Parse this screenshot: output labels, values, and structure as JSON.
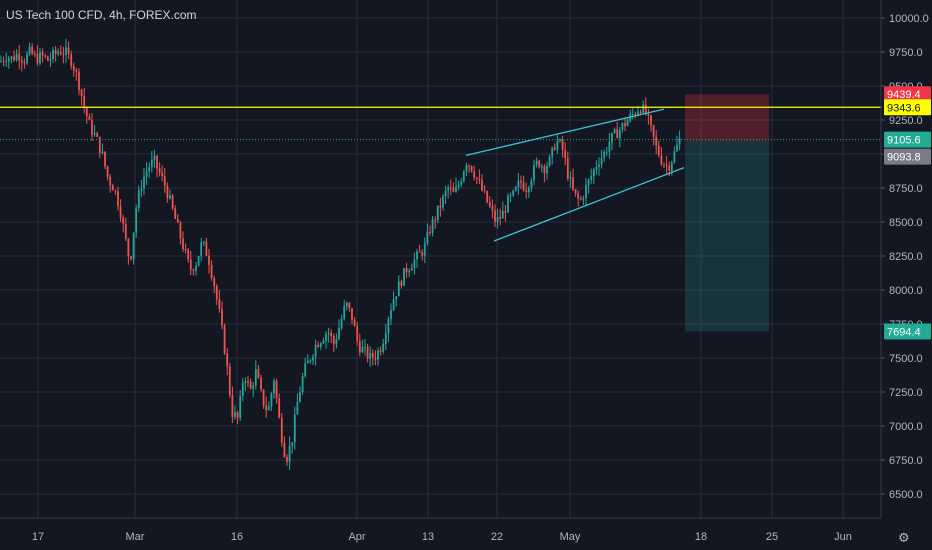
{
  "title": "US Tech 100 CFD, 4h, FOREX.com",
  "colors": {
    "background": "#131722",
    "grid": "#2a2e39",
    "up": "#26a69a",
    "down": "#ef5350",
    "axis_text": "#b2b5be",
    "resistance": "#ffff00",
    "channel": "#38c2cf",
    "stop_zone": "#f23645",
    "target_zone": "#22ab94"
  },
  "chart_data": {
    "type": "candlestick",
    "timeframe": "4h",
    "symbol": "US Tech 100 CFD",
    "source": "FOREX.com",
    "y_ticks": [
      10000,
      9750,
      9500,
      9250,
      9000,
      8750,
      8500,
      8250,
      8000,
      7750,
      7500,
      7250,
      7000,
      6750,
      6500
    ],
    "y_tick_labels": [
      "10000.0",
      "9750.0",
      "9500.0",
      "9250.0",
      "9000.0",
      "8750.0",
      "8500.0",
      "8250.0",
      "8000.0",
      "7750.0",
      "7500.0",
      "7250.0",
      "7000.0",
      "6750.0",
      "6500.0"
    ],
    "ylim": [
      6420,
      10080
    ],
    "x_ticks": [
      "17",
      "Mar",
      "16",
      "Apr",
      "13",
      "22",
      "May",
      "18",
      "25",
      "Jun"
    ],
    "price_labels": [
      {
        "text": "9439.4",
        "value": 9439.4,
        "color": "#f23645"
      },
      {
        "text": "9343.6",
        "value": 9343.6,
        "color": "#ffff00"
      },
      {
        "text": "9105.6",
        "value": 9105.6,
        "color": "#22ab94"
      },
      {
        "text": "9093.8",
        "value": 9093.8,
        "color": "#787b86"
      },
      {
        "text": "7694.4",
        "value": 7694.4,
        "color": "#22ab94"
      }
    ],
    "resistance_level": 9343.6,
    "last_price": 9105.6,
    "position": {
      "stop": 9439.4,
      "entry": 9093.8,
      "target": 7694.4
    },
    "channel_upper": {
      "from": {
        "date": "Apr 17",
        "value": 8990
      },
      "to": {
        "date": "May 12",
        "value": 9330
      }
    },
    "channel_lower": {
      "from": {
        "date": "Apr 21",
        "value": 8360
      },
      "to": {
        "date": "May 13",
        "value": 8900
      }
    },
    "path": [
      [
        0,
        9680
      ],
      [
        6,
        9720
      ],
      [
        12,
        9700
      ],
      [
        18,
        9740
      ],
      [
        24,
        9690
      ],
      [
        30,
        9750
      ],
      [
        36,
        9700
      ],
      [
        42,
        9720
      ],
      [
        48,
        9690
      ],
      [
        54,
        9730
      ],
      [
        60,
        9760
      ],
      [
        66,
        9740
      ],
      [
        72,
        9680
      ],
      [
        78,
        9550
      ],
      [
        84,
        9350
      ],
      [
        90,
        9200
      ],
      [
        96,
        9120
      ],
      [
        102,
        9000
      ],
      [
        108,
        8820
      ],
      [
        114,
        8750
      ],
      [
        120,
        8600
      ],
      [
        126,
        8350
      ],
      [
        130,
        8200
      ],
      [
        136,
        8600
      ],
      [
        142,
        8800
      ],
      [
        148,
        8900
      ],
      [
        154,
        8950
      ],
      [
        160,
        8850
      ],
      [
        166,
        8750
      ],
      [
        172,
        8600
      ],
      [
        178,
        8450
      ],
      [
        184,
        8300
      ],
      [
        190,
        8150
      ],
      [
        196,
        8200
      ],
      [
        202,
        8350
      ],
      [
        208,
        8250
      ],
      [
        214,
        8050
      ],
      [
        220,
        7800
      ],
      [
        226,
        7500
      ],
      [
        232,
        7100
      ],
      [
        238,
        7050
      ],
      [
        244,
        7400
      ],
      [
        250,
        7250
      ],
      [
        256,
        7400
      ],
      [
        262,
        7200
      ],
      [
        268,
        7100
      ],
      [
        274,
        7350
      ],
      [
        280,
        7000
      ],
      [
        286,
        6750
      ],
      [
        292,
        6900
      ],
      [
        298,
        7200
      ],
      [
        304,
        7400
      ],
      [
        310,
        7500
      ],
      [
        316,
        7600
      ],
      [
        322,
        7650
      ],
      [
        328,
        7700
      ],
      [
        334,
        7600
      ],
      [
        340,
        7750
      ],
      [
        346,
        7900
      ],
      [
        352,
        7800
      ],
      [
        358,
        7600
      ],
      [
        364,
        7550
      ],
      [
        370,
        7500
      ],
      [
        376,
        7520
      ],
      [
        382,
        7600
      ],
      [
        388,
        7800
      ],
      [
        394,
        7950
      ],
      [
        400,
        8050
      ],
      [
        406,
        8150
      ],
      [
        412,
        8200
      ],
      [
        418,
        8250
      ],
      [
        424,
        8300
      ],
      [
        430,
        8450
      ],
      [
        436,
        8550
      ],
      [
        442,
        8650
      ],
      [
        448,
        8750
      ],
      [
        454,
        8700
      ],
      [
        460,
        8800
      ],
      [
        466,
        8950
      ],
      [
        472,
        8900
      ],
      [
        478,
        8800
      ],
      [
        484,
        8700
      ],
      [
        490,
        8600
      ],
      [
        496,
        8500
      ],
      [
        502,
        8550
      ],
      [
        508,
        8650
      ],
      [
        514,
        8700
      ],
      [
        520,
        8800
      ],
      [
        526,
        8750
      ],
      [
        532,
        8850
      ],
      [
        538,
        8950
      ],
      [
        544,
        8900
      ],
      [
        550,
        8950
      ],
      [
        556,
        9100
      ],
      [
        562,
        9050
      ],
      [
        568,
        8850
      ],
      [
        574,
        8700
      ],
      [
        580,
        8650
      ],
      [
        586,
        8750
      ],
      [
        592,
        8850
      ],
      [
        598,
        8950
      ],
      [
        604,
        9000
      ],
      [
        610,
        9100
      ],
      [
        616,
        9150
      ],
      [
        622,
        9200
      ],
      [
        628,
        9250
      ],
      [
        634,
        9300
      ],
      [
        640,
        9350
      ],
      [
        646,
        9300
      ],
      [
        650,
        9200
      ],
      [
        656,
        9050
      ],
      [
        662,
        8950
      ],
      [
        668,
        8900
      ],
      [
        674,
        9000
      ],
      [
        680,
        9110
      ]
    ]
  }
}
